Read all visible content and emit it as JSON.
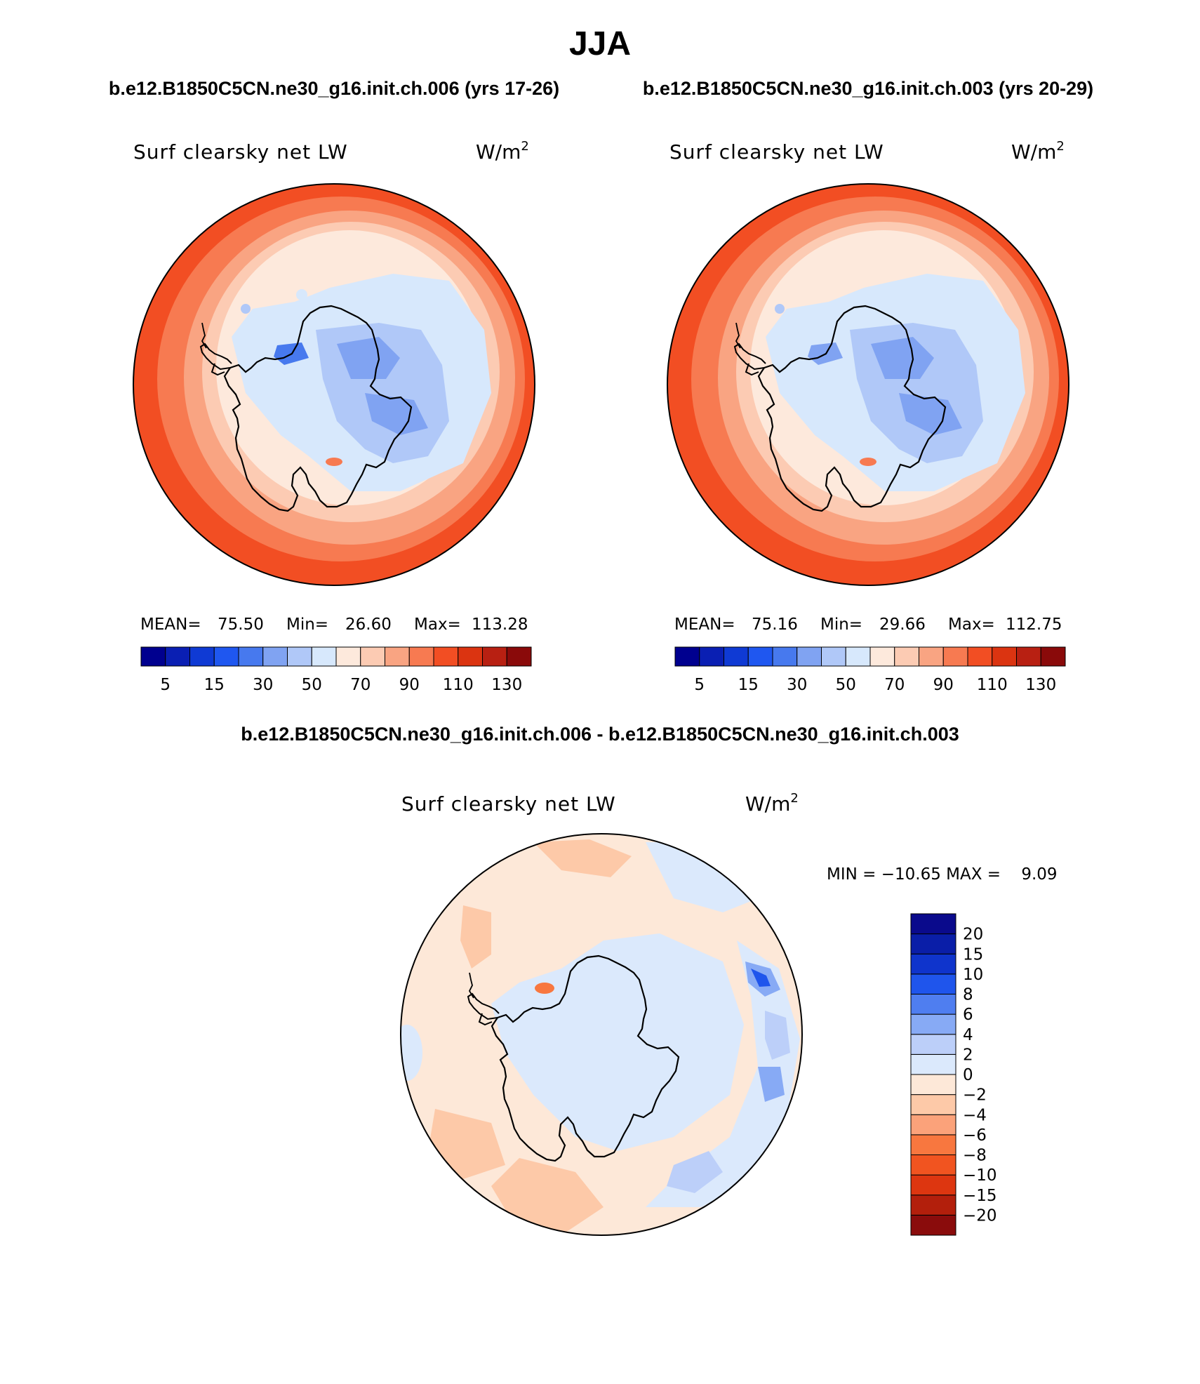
{
  "figure": {
    "season": "JJA",
    "case1_title": "b.e12.B1850C5CN.ne30_g16.init.ch.006 (yrs 17-26)",
    "case2_title": "b.e12.B1850C5CN.ne30_g16.init.ch.003 (yrs 20-29)",
    "diff_title": "b.e12.B1850C5CN.ne30_g16.init.ch.006 - b.e12.B1850C5CN.ne30_g16.init.ch.003"
  },
  "panels": {
    "p1": {
      "variable": "Surf clearsky net LW",
      "units": "W/m",
      "units_sup": "2",
      "mean_label": "MEAN=",
      "mean_value": "75.50",
      "min_label": "Min=",
      "min_value": "26.60",
      "max_label": "Max=",
      "max_value": "113.28"
    },
    "p2": {
      "variable": "Surf clearsky net LW",
      "units": "W/m",
      "units_sup": "2",
      "mean_label": "MEAN=",
      "mean_value": "75.16",
      "min_label": "Min=",
      "min_value": "29.66",
      "max_label": "Max=",
      "max_value": "112.75"
    },
    "diff": {
      "variable": "Surf clearsky net LW",
      "units": "W/m",
      "units_sup": "2",
      "minmax": "MIN = −10.65 MAX =    9.09"
    }
  },
  "colorbars": {
    "abs_colors": [
      "#00008f",
      "#0a1fb3",
      "#0f3ad4",
      "#1f57f0",
      "#4779ee",
      "#80a3f2",
      "#b0c8f8",
      "#d7e8fc",
      "#fde9dc",
      "#fccbb3",
      "#f9a482",
      "#f77a51",
      "#f24e23",
      "#db3411",
      "#b82012",
      "#8a0a0a"
    ],
    "abs_labels": [
      "5",
      "15",
      "30",
      "50",
      "70",
      "90",
      "110",
      "130"
    ],
    "diff_colors": [
      "#0a0a8c",
      "#0a1ea8",
      "#0f34cc",
      "#1f55ec",
      "#4f7ef0",
      "#87aaf5",
      "#bccff9",
      "#dbe9fc",
      "#fde8d8",
      "#fdc9a8",
      "#fba27a",
      "#f8773f",
      "#f15420",
      "#dd3610",
      "#b31f0c",
      "#8a0c0c"
    ],
    "diff_labels": [
      "20",
      "15",
      "10",
      "8",
      "6",
      "4",
      "2",
      "0",
      "−2",
      "−4",
      "−6",
      "−8",
      "−10",
      "−15",
      "−20"
    ]
  }
}
